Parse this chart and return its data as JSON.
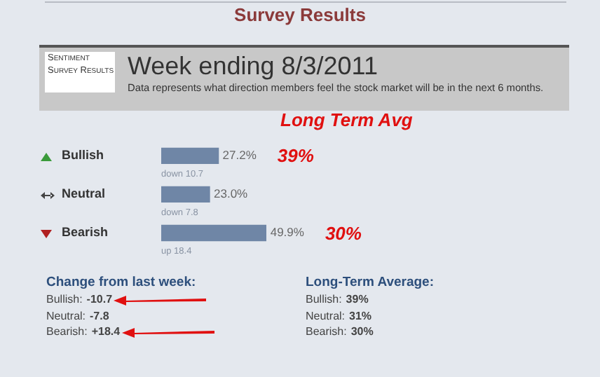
{
  "chart_data": {
    "type": "bar",
    "orientation": "horizontal",
    "title": "Survey Results",
    "subtitle": "Week ending 8/3/2011",
    "categories": [
      "Bullish",
      "Neutral",
      "Bearish"
    ],
    "values": [
      27.2,
      23.0,
      49.9
    ],
    "color": "#6f86a6",
    "value_labels": [
      "27.2%",
      "23.0%",
      "49.9%"
    ],
    "legend": false,
    "tick_labels": "y",
    "annotations": [
      "Sentiment Survey Results",
      "Data represents what direction members feel the stock market will be in the next 6 months.",
      "Long Term Avg",
      "39%",
      "30%",
      "down 10.7",
      "down 7.8",
      "up 18.4",
      "Change from last week:",
      "Bullish: -10.7",
      "Neutral: -7.8",
      "Bearish: +18.4",
      "Long-Term Average:",
      "Bullish: 39%",
      "Neutral: 31%",
      "Bearish: 30%"
    ]
  }
}
